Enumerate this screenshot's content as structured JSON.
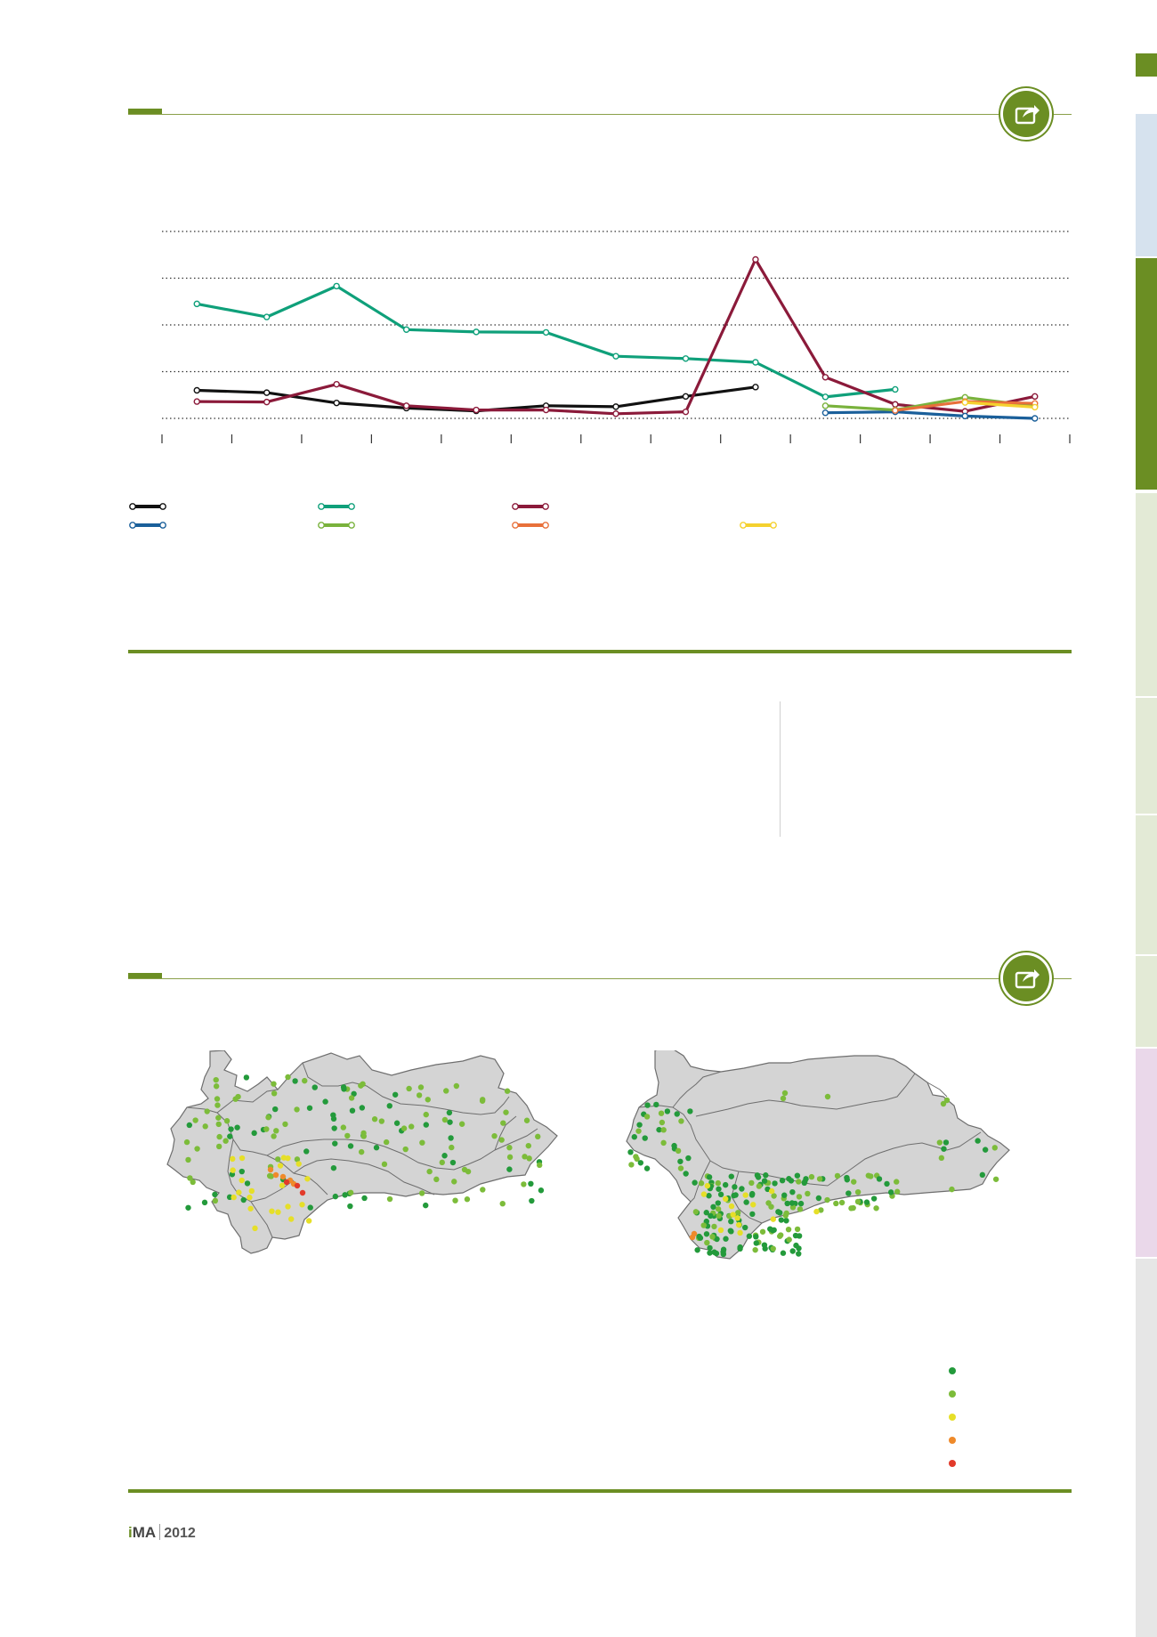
{
  "footer": {
    "logo_i": "i",
    "logo_rest": "MA",
    "year": "2012"
  },
  "icons": {
    "share_1": "share-icon",
    "share_2": "share-icon"
  },
  "colors": {
    "accent": "#6b8e23",
    "series_black": "#111111",
    "series_teal": "#0fa07a",
    "series_maroon": "#8b1a3a",
    "series_blue": "#1a5f9a",
    "series_lightgreen": "#79b23c",
    "series_orange": "#e8703a",
    "series_yellow": "#f5d12f",
    "map_fill": "#d4d4d4",
    "map_dark_green": "#239a3b",
    "map_light_green": "#7cbc3a",
    "map_yellow": "#e6df28",
    "map_orange": "#ef8a2a",
    "map_red": "#e23a2a"
  },
  "chart_data": {
    "type": "line",
    "categories": [
      "",
      "",
      "",
      "",
      "",
      "",
      "",
      "",
      "",
      "",
      "",
      "",
      ""
    ],
    "ylim": [
      0,
      4
    ],
    "grid": true,
    "series": [
      {
        "color": "#111111",
        "values": [
          0.6,
          0.55,
          0.33,
          0.22,
          0.16,
          0.27,
          0.25,
          0.47,
          0.67,
          null,
          null,
          null,
          null
        ]
      },
      {
        "color": "#0fa07a",
        "values": [
          2.45,
          2.17,
          2.83,
          1.9,
          1.85,
          1.84,
          1.33,
          1.28,
          1.2,
          0.46,
          0.62,
          null,
          null
        ]
      },
      {
        "color": "#8b1a3a",
        "values": [
          0.36,
          0.35,
          0.73,
          0.27,
          0.18,
          0.18,
          0.1,
          0.14,
          3.4,
          0.88,
          0.3,
          0.15,
          0.47
        ]
      },
      {
        "color": "#1a5f9a",
        "values": [
          null,
          null,
          null,
          null,
          null,
          null,
          null,
          null,
          null,
          0.12,
          0.14,
          0.05,
          0.0
        ]
      },
      {
        "color": "#79b23c",
        "values": [
          null,
          null,
          null,
          null,
          null,
          null,
          null,
          null,
          null,
          0.27,
          0.18,
          0.45,
          0.26
        ]
      },
      {
        "color": "#e8703a",
        "values": [
          null,
          null,
          null,
          null,
          null,
          null,
          null,
          null,
          null,
          null,
          0.17,
          0.36,
          0.32
        ]
      },
      {
        "color": "#f5d12f",
        "values": [
          null,
          null,
          null,
          null,
          null,
          null,
          null,
          null,
          null,
          null,
          null,
          0.34,
          0.24
        ]
      }
    ]
  },
  "legend": [
    {
      "color": "#111111"
    },
    {
      "color": "#0fa07a"
    },
    {
      "color": "#8b1a3a"
    },
    {
      "color": "#1a5f9a"
    },
    {
      "color": "#79b23c"
    },
    {
      "color": "#e8703a"
    },
    {
      "color": "#f5d12f"
    }
  ],
  "map_legend": [
    {
      "color": "#239a3b"
    },
    {
      "color": "#7cbc3a"
    },
    {
      "color": "#e6df28"
    },
    {
      "color": "#ef8a2a"
    },
    {
      "color": "#e23a2a"
    }
  ]
}
